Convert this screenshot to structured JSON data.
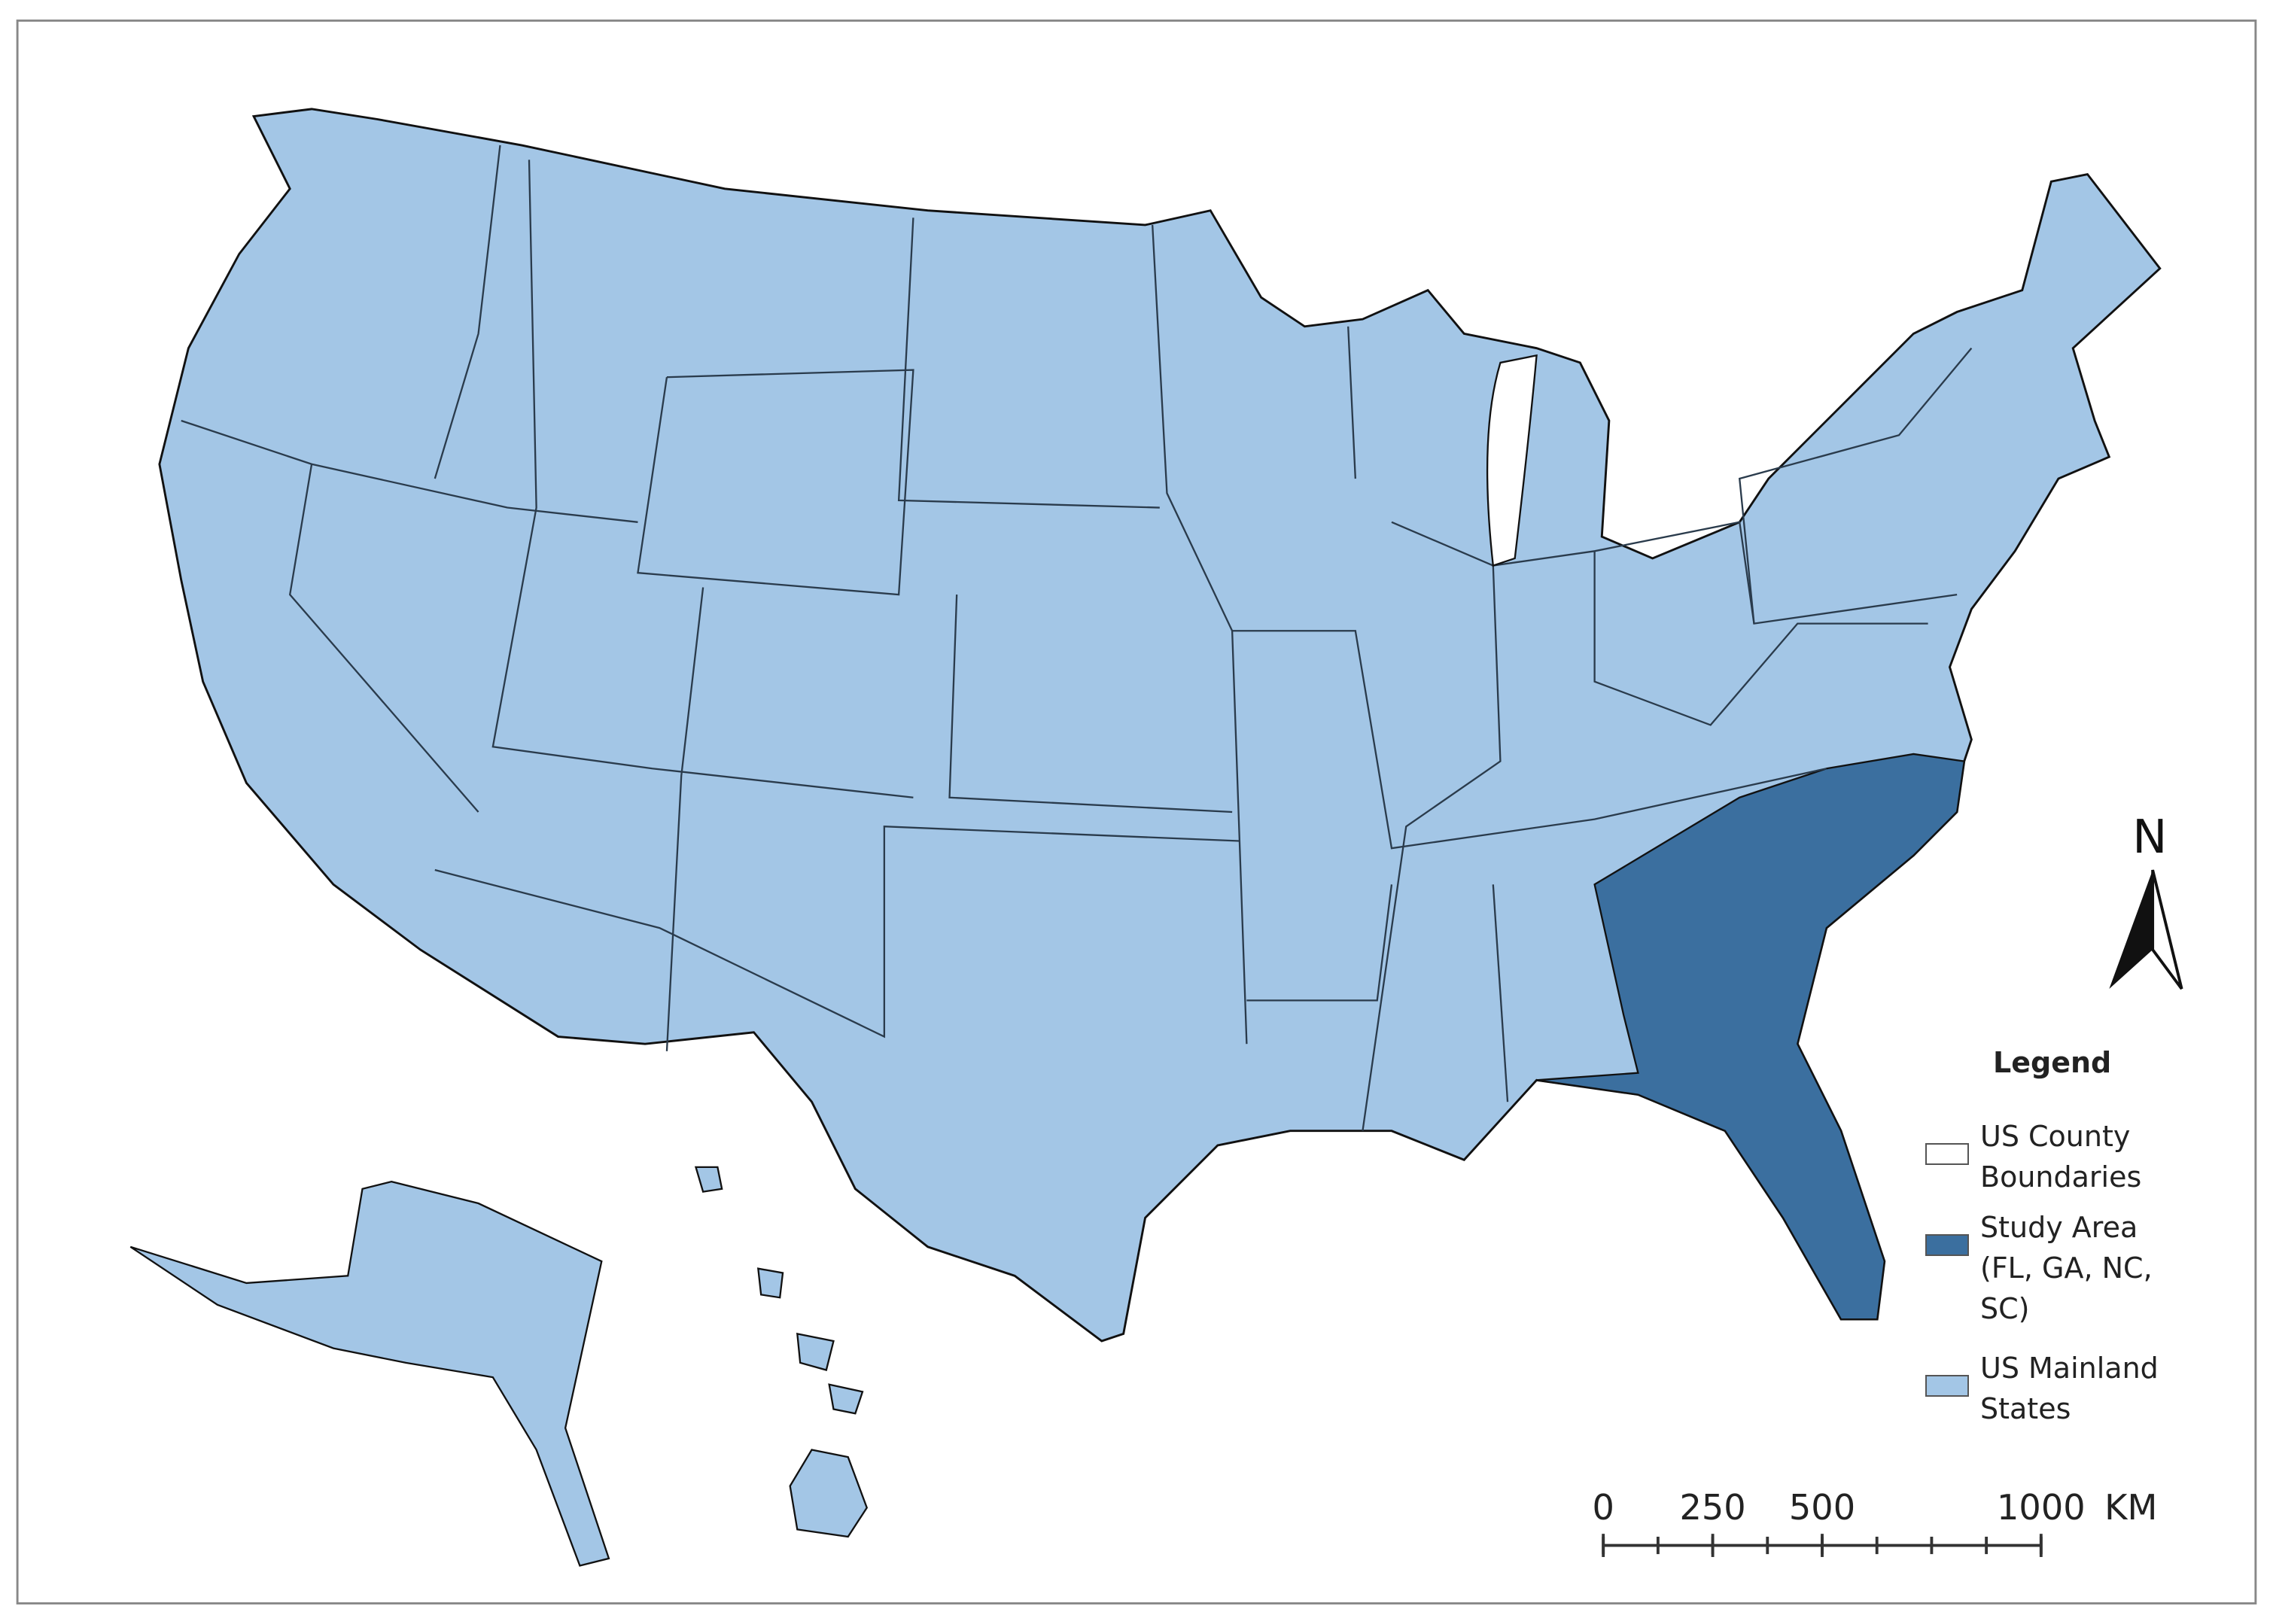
{
  "legend": {
    "title": "Legend",
    "items": [
      {
        "label": "US County Boundaries",
        "color": "#ffffff"
      },
      {
        "label": "Study Area (FL, GA, NC, SC)",
        "color": "#3b6f9f"
      },
      {
        "label": "US Mainland States",
        "color": "#a3c6e6"
      }
    ]
  },
  "north_arrow": {
    "label": "N"
  },
  "scale_bar": {
    "ticks": [
      0,
      250,
      500,
      1000
    ],
    "max": 1000,
    "unit": "KM"
  }
}
